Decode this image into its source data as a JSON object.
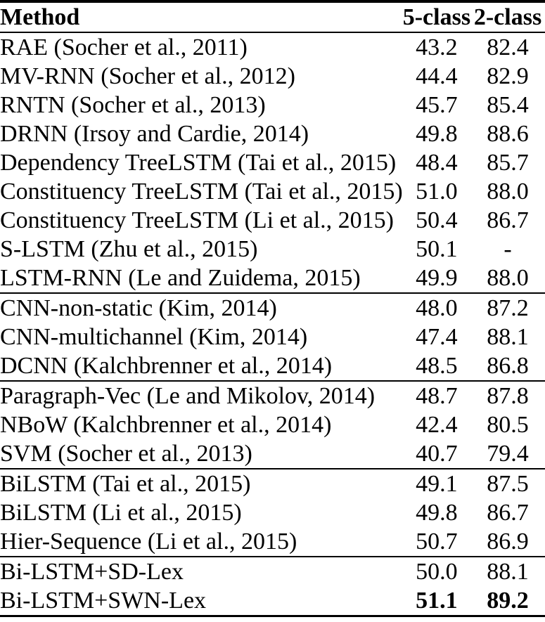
{
  "colors": {
    "text": "#000000",
    "background": "#ffffff",
    "rule": "#000000"
  },
  "table": {
    "columns": {
      "method": "Method",
      "five_class": "5-class",
      "two_class": "2-class"
    },
    "rows": [
      {
        "method": "RAE (Socher et al., 2011)",
        "five_class": "43.2",
        "two_class": "82.4"
      },
      {
        "method": "MV-RNN (Socher et al., 2012)",
        "five_class": "44.4",
        "two_class": "82.9"
      },
      {
        "method": "RNTN (Socher et al., 2013)",
        "five_class": "45.7",
        "two_class": "85.4"
      },
      {
        "method": "DRNN (Irsoy and Cardie, 2014)",
        "five_class": "49.8",
        "two_class": "88.6"
      },
      {
        "method": "Dependency TreeLSTM (Tai et al., 2015)",
        "five_class": "48.4",
        "two_class": "85.7"
      },
      {
        "method": "Constituency TreeLSTM (Tai et al., 2015)",
        "five_class": "51.0",
        "two_class": "88.0"
      },
      {
        "method": "Constituency TreeLSTM (Li et al., 2015)",
        "five_class": "50.4",
        "two_class": "86.7"
      },
      {
        "method": "S-LSTM (Zhu et al., 2015)",
        "five_class": "50.1",
        "two_class": "-"
      },
      {
        "method": "LSTM-RNN (Le and Zuidema, 2015)",
        "five_class": "49.9",
        "two_class": "88.0"
      },
      {
        "method": "CNN-non-static (Kim, 2014)",
        "five_class": "48.0",
        "two_class": "87.2"
      },
      {
        "method": "CNN-multichannel (Kim, 2014)",
        "five_class": "47.4",
        "two_class": "88.1"
      },
      {
        "method": "DCNN (Kalchbrenner et al., 2014)",
        "five_class": "48.5",
        "two_class": "86.8"
      },
      {
        "method": "Paragraph-Vec (Le and Mikolov, 2014)",
        "five_class": "48.7",
        "two_class": "87.8"
      },
      {
        "method": "NBoW (Kalchbrenner et al., 2014)",
        "five_class": "42.4",
        "two_class": "80.5"
      },
      {
        "method": "SVM (Socher et al., 2013)",
        "five_class": "40.7",
        "two_class": "79.4"
      },
      {
        "method": "BiLSTM (Tai et al., 2015)",
        "five_class": "49.1",
        "two_class": "87.5"
      },
      {
        "method": "BiLSTM (Li et al., 2015)",
        "five_class": "49.8",
        "two_class": "86.7"
      },
      {
        "method": "Hier-Sequence (Li et al., 2015)",
        "five_class": "50.7",
        "two_class": "86.9"
      },
      {
        "method": "Bi-LSTM+SD-Lex",
        "five_class": "50.0",
        "two_class": "88.1"
      },
      {
        "method": "Bi-LSTM+SWN-Lex",
        "five_class": "51.1",
        "two_class": "89.2"
      }
    ]
  }
}
